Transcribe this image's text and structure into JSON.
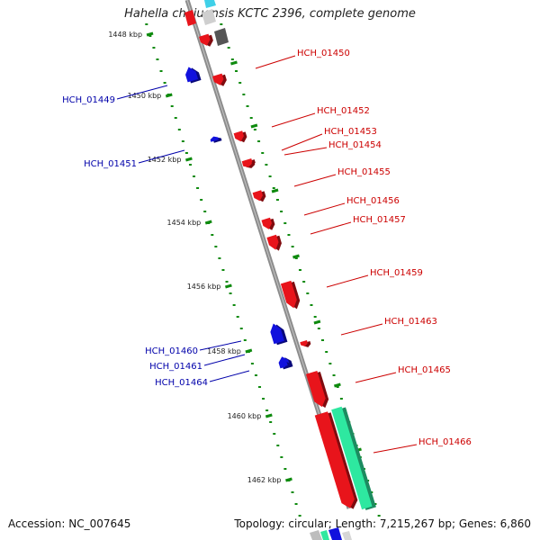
{
  "title": "Hahella chejuensis KCTC 2396, complete genome",
  "footer": {
    "accession": "Accession: NC_007645",
    "summary": "Topology: circular; Length: 7,215,267 bp; Genes: 6,860"
  },
  "colors": {
    "forward_gene": "#e8141b",
    "reverse_gene": "#1111dd",
    "forward_label": "#cc0000",
    "reverse_label": "#0000aa",
    "rna_gene": "#2ee8a0",
    "ruler": "#0e8a0e",
    "backbone": "#8c8c8c",
    "other_gene": "#6a6a6a"
  },
  "ticks": [
    {
      "label": "1448 kbp",
      "kbp": 1448
    },
    {
      "label": "1450 kbp",
      "kbp": 1450
    },
    {
      "label": "1452 kbp",
      "kbp": 1452
    },
    {
      "label": "1454 kbp",
      "kbp": 1454
    },
    {
      "label": "1456 kbp",
      "kbp": 1456
    },
    {
      "label": "1458 kbp",
      "kbp": 1458
    },
    {
      "label": "1460 kbp",
      "kbp": 1460
    },
    {
      "label": "1462 kbp",
      "kbp": 1462
    }
  ],
  "forward_genes": [
    {
      "label": "HCH_01450"
    },
    {
      "label": "HCH_01452"
    },
    {
      "label": "HCH_01453"
    },
    {
      "label": "HCH_01454"
    },
    {
      "label": "HCH_01455"
    },
    {
      "label": "HCH_01456"
    },
    {
      "label": "HCH_01457"
    },
    {
      "label": "HCH_01459"
    },
    {
      "label": "HCH_01463"
    },
    {
      "label": "HCH_01465"
    },
    {
      "label": "HCH_01466"
    }
  ],
  "reverse_genes": [
    {
      "label": "HCH_01449"
    },
    {
      "label": "HCH_01451"
    },
    {
      "label": "HCH_01460"
    },
    {
      "label": "HCH_01461"
    },
    {
      "label": "HCH_01464"
    }
  ]
}
